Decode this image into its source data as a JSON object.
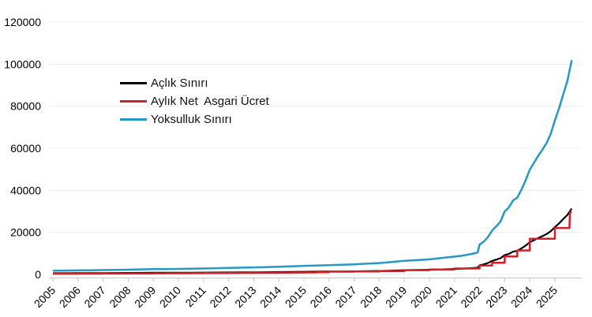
{
  "page": {
    "background_color": "#ffffff",
    "grid_color": "#ececec",
    "axis_color": "#c4c4c4",
    "text_color": "#000000"
  },
  "chart_data": {
    "type": "line",
    "title": "",
    "xlabel": "",
    "ylabel": "",
    "grid": "horizontal-only",
    "legend_position": "inside-upper-left",
    "xlim": [
      2004.84,
      2026.07
    ],
    "ylim": [
      0,
      120000
    ],
    "x_tick_labels": [
      "2005",
      "2006",
      "2007",
      "2008",
      "2009",
      "2010",
      "2011",
      "2012",
      "2013",
      "2014",
      "2015",
      "2016",
      "2017",
      "2018",
      "2019",
      "2020",
      "2021",
      "2022",
      "2023",
      "2024",
      "2025"
    ],
    "x_tick_values": [
      2005,
      2006,
      2007,
      2008,
      2009,
      2010,
      2011,
      2012,
      2013,
      2014,
      2015,
      2016,
      2017,
      2018,
      2019,
      2020,
      2021,
      2022,
      2023,
      2024,
      2025
    ],
    "y_tick_labels": [
      "0",
      "20000",
      "40000",
      "60000",
      "80000",
      "100000",
      "120000"
    ],
    "y_tick_values": [
      0,
      20000,
      40000,
      60000,
      80000,
      100000,
      120000
    ],
    "series": [
      {
        "name": "Açlık Sınırı",
        "color": "#000000",
        "stroke_width": 2.2,
        "points": [
          [
            2005.0,
            550
          ],
          [
            2005.5,
            565
          ],
          [
            2006.0,
            590
          ],
          [
            2006.5,
            610
          ],
          [
            2007.0,
            635
          ],
          [
            2007.5,
            660
          ],
          [
            2008.0,
            695
          ],
          [
            2008.5,
            735
          ],
          [
            2009.0,
            770
          ],
          [
            2009.5,
            785
          ],
          [
            2010.0,
            805
          ],
          [
            2010.5,
            835
          ],
          [
            2011.0,
            865
          ],
          [
            2011.5,
            905
          ],
          [
            2012.0,
            945
          ],
          [
            2012.5,
            985
          ],
          [
            2013.0,
            1025
          ],
          [
            2013.5,
            1065
          ],
          [
            2014.0,
            1115
          ],
          [
            2014.5,
            1185
          ],
          [
            2015.0,
            1255
          ],
          [
            2015.5,
            1305
          ],
          [
            2016.0,
            1345
          ],
          [
            2016.5,
            1405
          ],
          [
            2017.0,
            1475
          ],
          [
            2017.5,
            1565
          ],
          [
            2018.0,
            1655
          ],
          [
            2018.5,
            1805
          ],
          [
            2019.0,
            1985
          ],
          [
            2019.5,
            2085
          ],
          [
            2020.0,
            2205
          ],
          [
            2020.5,
            2405
          ],
          [
            2021.0,
            2605
          ],
          [
            2021.25,
            2705
          ],
          [
            2021.5,
            2855
          ],
          [
            2021.75,
            3055
          ],
          [
            2021.92,
            3205
          ],
          [
            2022.0,
            4350
          ],
          [
            2022.17,
            4800
          ],
          [
            2022.33,
            5450
          ],
          [
            2022.5,
            6400
          ],
          [
            2022.67,
            7050
          ],
          [
            2022.83,
            7700
          ],
          [
            2023.0,
            9200
          ],
          [
            2023.17,
            9800
          ],
          [
            2023.33,
            10800
          ],
          [
            2023.5,
            11200
          ],
          [
            2023.67,
            12400
          ],
          [
            2023.83,
            13700
          ],
          [
            2024.0,
            15300
          ],
          [
            2024.17,
            16300
          ],
          [
            2024.33,
            17300
          ],
          [
            2024.5,
            18200
          ],
          [
            2024.67,
            19200
          ],
          [
            2024.83,
            20500
          ],
          [
            2025.0,
            22500
          ],
          [
            2025.17,
            24300
          ],
          [
            2025.33,
            26300
          ],
          [
            2025.5,
            28300
          ],
          [
            2025.67,
            31300
          ]
        ]
      },
      {
        "name": "Aylık Net  Asgari Ücret",
        "color": "#cf2128",
        "stroke_width": 2.5,
        "points": [
          [
            2005.0,
            350
          ],
          [
            2006.0,
            350
          ],
          [
            2006.0,
            380
          ],
          [
            2007.0,
            380
          ],
          [
            2007.0,
            403
          ],
          [
            2007.5,
            403
          ],
          [
            2007.5,
            419
          ],
          [
            2008.0,
            419
          ],
          [
            2008.0,
            482
          ],
          [
            2008.5,
            482
          ],
          [
            2008.5,
            503
          ],
          [
            2009.0,
            503
          ],
          [
            2009.0,
            527
          ],
          [
            2009.5,
            527
          ],
          [
            2009.5,
            546
          ],
          [
            2010.0,
            546
          ],
          [
            2010.0,
            577
          ],
          [
            2010.5,
            577
          ],
          [
            2010.5,
            599
          ],
          [
            2011.0,
            599
          ],
          [
            2011.0,
            630
          ],
          [
            2011.5,
            630
          ],
          [
            2011.5,
            659
          ],
          [
            2012.0,
            659
          ],
          [
            2012.0,
            701
          ],
          [
            2012.5,
            701
          ],
          [
            2012.5,
            740
          ],
          [
            2013.0,
            740
          ],
          [
            2013.0,
            773
          ],
          [
            2013.5,
            773
          ],
          [
            2013.5,
            805
          ],
          [
            2014.0,
            805
          ],
          [
            2014.0,
            846
          ],
          [
            2014.5,
            846
          ],
          [
            2014.5,
            891
          ],
          [
            2015.0,
            891
          ],
          [
            2015.0,
            949
          ],
          [
            2015.5,
            949
          ],
          [
            2015.5,
            1000
          ],
          [
            2016.0,
            1000
          ],
          [
            2016.0,
            1301
          ],
          [
            2017.0,
            1301
          ],
          [
            2017.0,
            1404
          ],
          [
            2018.0,
            1404
          ],
          [
            2018.0,
            1603
          ],
          [
            2019.0,
            1603
          ],
          [
            2019.0,
            2020
          ],
          [
            2020.0,
            2020
          ],
          [
            2020.0,
            2325
          ],
          [
            2021.0,
            2325
          ],
          [
            2021.0,
            2826
          ],
          [
            2022.0,
            2826
          ],
          [
            2022.0,
            4253
          ],
          [
            2022.5,
            4253
          ],
          [
            2022.5,
            5500
          ],
          [
            2023.0,
            5500
          ],
          [
            2023.0,
            8507
          ],
          [
            2023.5,
            8507
          ],
          [
            2023.5,
            11402
          ],
          [
            2024.0,
            11402
          ],
          [
            2024.0,
            17002
          ],
          [
            2025.0,
            17002
          ],
          [
            2025.0,
            22104
          ],
          [
            2025.58,
            22104
          ],
          [
            2025.6,
            29500
          ],
          [
            2025.67,
            29500
          ]
        ]
      },
      {
        "name": "Yoksulluk Sınırı",
        "color": "#2598c6",
        "stroke_width": 2.5,
        "points": [
          [
            2005.0,
            1790
          ],
          [
            2005.5,
            1840
          ],
          [
            2006.0,
            1920
          ],
          [
            2006.5,
            1990
          ],
          [
            2007.0,
            2070
          ],
          [
            2007.5,
            2150
          ],
          [
            2008.0,
            2260
          ],
          [
            2008.5,
            2390
          ],
          [
            2009.0,
            2510
          ],
          [
            2009.5,
            2560
          ],
          [
            2010.0,
            2620
          ],
          [
            2010.5,
            2720
          ],
          [
            2011.0,
            2820
          ],
          [
            2011.5,
            2950
          ],
          [
            2012.0,
            3080
          ],
          [
            2012.5,
            3210
          ],
          [
            2013.0,
            3340
          ],
          [
            2013.5,
            3470
          ],
          [
            2014.0,
            3630
          ],
          [
            2014.5,
            3860
          ],
          [
            2015.0,
            4090
          ],
          [
            2015.5,
            4250
          ],
          [
            2016.0,
            4380
          ],
          [
            2016.5,
            4580
          ],
          [
            2017.0,
            4800
          ],
          [
            2017.5,
            5100
          ],
          [
            2018.0,
            5390
          ],
          [
            2018.5,
            5880
          ],
          [
            2019.0,
            6470
          ],
          [
            2019.5,
            6790
          ],
          [
            2020.0,
            7180
          ],
          [
            2020.5,
            7830
          ],
          [
            2021.0,
            8480
          ],
          [
            2021.25,
            8810
          ],
          [
            2021.5,
            9300
          ],
          [
            2021.75,
            9950
          ],
          [
            2021.92,
            10440
          ],
          [
            2022.0,
            14170
          ],
          [
            2022.17,
            15630
          ],
          [
            2022.33,
            17750
          ],
          [
            2022.5,
            20840
          ],
          [
            2022.67,
            22960
          ],
          [
            2022.83,
            25080
          ],
          [
            2023.0,
            29960
          ],
          [
            2023.17,
            31920
          ],
          [
            2023.33,
            35180
          ],
          [
            2023.5,
            36480
          ],
          [
            2023.67,
            40390
          ],
          [
            2023.83,
            44620
          ],
          [
            2024.0,
            49830
          ],
          [
            2024.17,
            53090
          ],
          [
            2024.33,
            56350
          ],
          [
            2024.5,
            59280
          ],
          [
            2024.67,
            62530
          ],
          [
            2024.83,
            66770
          ],
          [
            2025.0,
            73280
          ],
          [
            2025.17,
            79150
          ],
          [
            2025.33,
            85660
          ],
          [
            2025.5,
            92170
          ],
          [
            2025.67,
            101940
          ]
        ]
      }
    ]
  }
}
